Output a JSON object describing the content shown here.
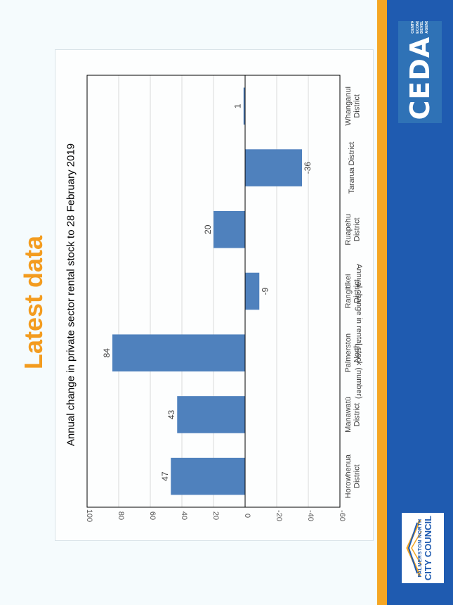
{
  "page": {
    "heading": "Latest data",
    "heading_color": "#f39c1f",
    "accent_orange": "#f5a623",
    "accent_blue": "#1f5bb0"
  },
  "logos": {
    "ceda": {
      "word": "CEDA",
      "subtitle": "CENTRAL ECONOMIC DEVELOPMENT AGENCY"
    },
    "pncc": {
      "line1": "PALMERSTON NORTH",
      "line2": "CITY COUNCIL"
    }
  },
  "chart_data": {
    "type": "bar",
    "title": "Annual change in private sector rental stock to 28 February 2019",
    "ylabel": "Annual change in rental stock (number)",
    "xlabel": "",
    "categories": [
      [
        "Horowhenua",
        "District"
      ],
      [
        "Manawatū",
        "District"
      ],
      [
        "Palmerston",
        "North"
      ],
      [
        "Rangitīkei",
        "District"
      ],
      [
        "Ruapehu",
        "District"
      ],
      [
        "Tararua District"
      ],
      [
        "Whanganui",
        "District"
      ]
    ],
    "values": [
      47,
      43,
      84,
      -9,
      20,
      -36,
      1
    ],
    "ylim": [
      -60,
      100
    ],
    "yticks": [
      100,
      80,
      60,
      40,
      20,
      0,
      -20,
      -40,
      -60
    ],
    "grid": true,
    "bar_color": "#4f81bd",
    "orientation": "page rotated 90° counter-clockwise"
  }
}
